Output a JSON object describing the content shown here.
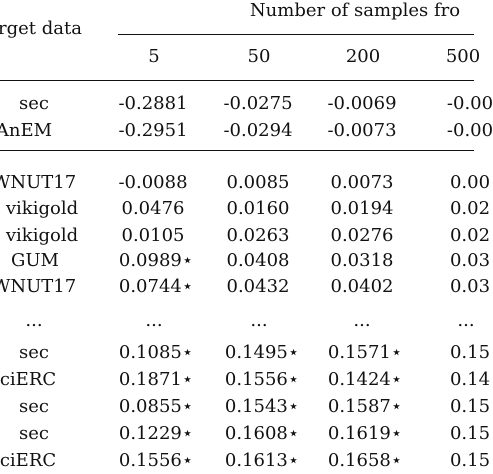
{
  "table": {
    "header": {
      "target_col": "rget data",
      "group_label": "Number of samples fro",
      "sample_cols": [
        "5",
        "50",
        "200",
        "500"
      ]
    },
    "rows": [
      {
        "target": "sec",
        "values": [
          "-0.2881",
          "-0.0275",
          "-0.0069",
          "-0.00"
        ]
      },
      {
        "target": "AnEM",
        "values": [
          "-0.2951",
          "-0.0294",
          "-0.0073",
          "-0.00"
        ]
      },
      {
        "target": "WNUT17",
        "values": [
          "-0.0088",
          "0.0085",
          "0.0073",
          "0.00"
        ]
      },
      {
        "target": "vikigold",
        "values": [
          "0.0476",
          "0.0160",
          "0.0194",
          "0.02"
        ]
      },
      {
        "target": "vikigold",
        "values": [
          "0.0105",
          "0.0263",
          "0.0276",
          "0.02"
        ]
      },
      {
        "target": "GUM",
        "values": [
          "0.0989⋆",
          "0.0408",
          "0.0318",
          "0.03"
        ]
      },
      {
        "target": "WNUT17",
        "values": [
          "0.0744⋆",
          "0.0432",
          "0.0402",
          "0.03"
        ]
      },
      {
        "target": "...",
        "values": [
          "...",
          "...",
          "...",
          "..."
        ]
      },
      {
        "target": "sec",
        "values": [
          "0.1085⋆",
          "0.1495⋆",
          "0.1571⋆",
          "0.15"
        ]
      },
      {
        "target": "ciERC",
        "values": [
          "0.1871⋆",
          "0.1556⋆",
          "0.1424⋆",
          "0.14"
        ]
      },
      {
        "target": "sec",
        "values": [
          "0.0855⋆",
          "0.1543⋆",
          "0.1587⋆",
          "0.15"
        ]
      },
      {
        "target": "sec",
        "values": [
          "0.1229⋆",
          "0.1608⋆",
          "0.1619⋆",
          "0.15"
        ]
      },
      {
        "target": "ciERC",
        "values": [
          "0.1556⋆",
          "0.1613⋆",
          "0.1658⋆",
          "0.15"
        ]
      }
    ]
  }
}
